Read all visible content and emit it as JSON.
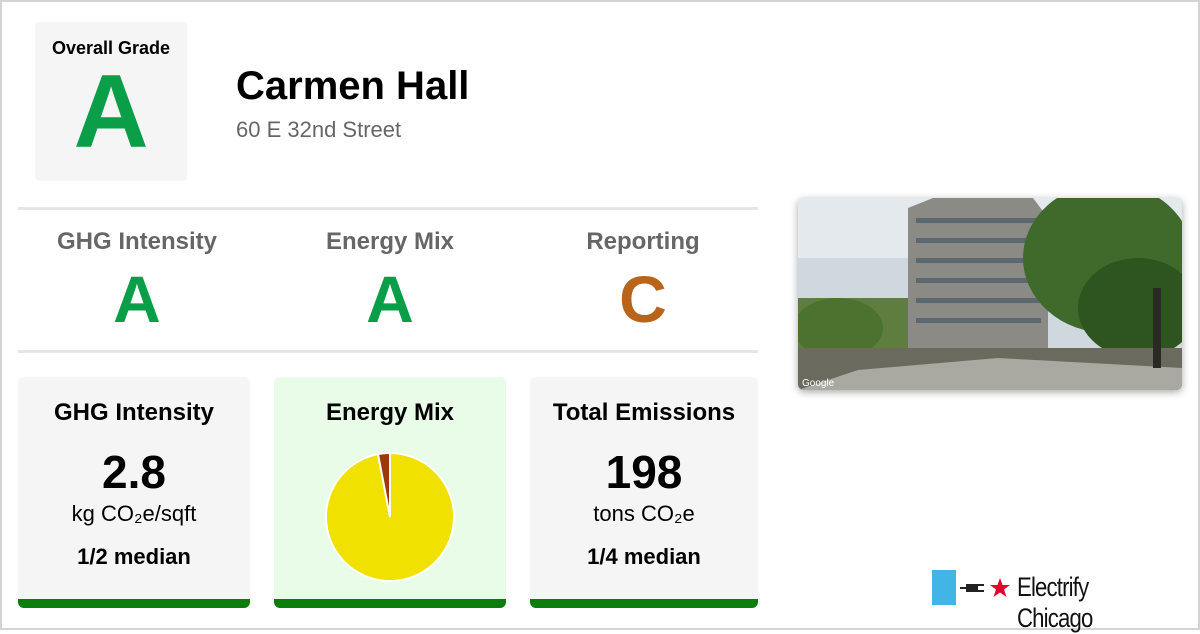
{
  "header": {
    "overall_label": "Overall Grade",
    "overall_grade": "A",
    "name": "Carmen Hall",
    "address": "60 E 32nd Street"
  },
  "grades": [
    {
      "label": "GHG Intensity",
      "grade": "A",
      "color": "#0b9e48"
    },
    {
      "label": "Energy Mix",
      "grade": "A",
      "color": "#0b9e48"
    },
    {
      "label": "Reporting",
      "grade": "C",
      "color": "#b8651b"
    }
  ],
  "cards": [
    {
      "title": "GHG Intensity",
      "value": "2.8",
      "unit": "kg CO₂e/sqft",
      "median": "1/2 median"
    },
    {
      "title": "Energy Mix"
    },
    {
      "title": "Total Emissions",
      "value": "198",
      "unit": "tons CO₂e",
      "median": "1/4 median"
    }
  ],
  "energy_mix_chart": {
    "type": "pie",
    "values": [
      97,
      3
    ],
    "colors": [
      "#f0e100",
      "#a0380c"
    ]
  },
  "photo_credit": "Google",
  "brand": "Electrify Chicago"
}
